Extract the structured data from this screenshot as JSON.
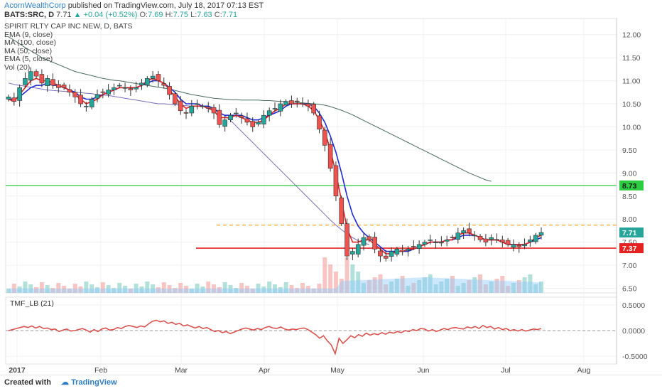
{
  "header": {
    "publisher": "AcornWealthCorp",
    "published_text": "published on TradingView.com, July 18, 2017 07:13 EST",
    "symbol_line": "BATS:SRC, D",
    "last": "7.71",
    "change": "+0.04 (+0.52%)",
    "open_label": "O:",
    "open": "7.69",
    "high_label": "H:",
    "high": "7.75",
    "low_label": "L:",
    "low": "7.63",
    "close_label": "C:",
    "close": "7.71"
  },
  "legend": [
    "SPIRIT RLTY CAP INC NEW, D, BATS",
    "EMA (9, close)",
    "MA (100, close)",
    "MA (50, close)",
    "EMA (5, close)",
    "Vol (20)"
  ],
  "footer": {
    "created_with": "Created with",
    "brand": "TradingView"
  },
  "colors": {
    "up": "#26a69a",
    "down": "#ef5350",
    "ema9": "#1f2bd6",
    "ema5": "#e02020",
    "ma100": "#4a6b5c",
    "ma50": "#7a6fb8",
    "support": "#e52222",
    "resistance_green": "#2ecc40",
    "dashed_orange": "#ffa726",
    "tmf": "#d9534f",
    "volume": "#90caf9"
  },
  "chart_data": [
    {
      "type": "candlestick",
      "title": "SPIRIT RLTY CAP INC NEW, D, BATS",
      "x_ticks": [
        "2017",
        "Feb",
        "Mar",
        "Apr",
        "May",
        "Jun",
        "Jul",
        "Aug"
      ],
      "y_ticks": [
        "12.00",
        "11.50",
        "11.00",
        "10.50",
        "10.00",
        "9.50",
        "9.00",
        "8.50",
        "8.00",
        "7.50",
        "7.00",
        "6.50"
      ],
      "ylim": [
        6.4,
        12.35
      ],
      "close_series": [
        10.65,
        10.55,
        10.85,
        11.05,
        11.2,
        11.1,
        10.95,
        11.05,
        10.9,
        10.85,
        10.85,
        10.75,
        10.65,
        10.5,
        10.45,
        10.6,
        10.7,
        10.75,
        10.8,
        10.85,
        10.9,
        10.85,
        10.8,
        10.85,
        10.95,
        11.05,
        11.1,
        11.0,
        10.9,
        10.7,
        10.5,
        10.35,
        10.3,
        10.45,
        10.5,
        10.45,
        10.4,
        10.3,
        10.05,
        10.15,
        10.25,
        10.3,
        10.2,
        10.1,
        10.0,
        10.1,
        10.25,
        10.35,
        10.4,
        10.5,
        10.55,
        10.5,
        10.55,
        10.5,
        10.45,
        10.3,
        9.95,
        9.6,
        9.1,
        8.5,
        7.9,
        7.2,
        7.3,
        7.45,
        7.6,
        7.55,
        7.35,
        7.2,
        7.15,
        7.3,
        7.35,
        7.3,
        7.35,
        7.4,
        7.45,
        7.5,
        7.55,
        7.5,
        7.5,
        7.55,
        7.6,
        7.7,
        7.75,
        7.7,
        7.65,
        7.55,
        7.5,
        7.6,
        7.55,
        7.5,
        7.45,
        7.45,
        7.4,
        7.45,
        7.55,
        7.65,
        7.71
      ],
      "ema9_series": [
        10.6,
        10.6,
        10.65,
        10.75,
        10.85,
        10.9,
        10.9,
        10.95,
        10.9,
        10.9,
        10.85,
        10.8,
        10.75,
        10.65,
        10.6,
        10.6,
        10.65,
        10.7,
        10.75,
        10.8,
        10.85,
        10.85,
        10.85,
        10.85,
        10.9,
        10.95,
        11.0,
        11.0,
        10.95,
        10.85,
        10.75,
        10.6,
        10.5,
        10.5,
        10.5,
        10.45,
        10.45,
        10.4,
        10.3,
        10.25,
        10.25,
        10.25,
        10.25,
        10.2,
        10.15,
        10.15,
        10.2,
        10.25,
        10.3,
        10.35,
        10.45,
        10.5,
        10.5,
        10.5,
        10.5,
        10.45,
        10.3,
        10.1,
        9.8,
        9.45,
        9.0,
        8.5,
        8.1,
        7.85,
        7.7,
        7.6,
        7.5,
        7.4,
        7.3,
        7.3,
        7.3,
        7.3,
        7.3,
        7.35,
        7.4,
        7.45,
        7.5,
        7.5,
        7.5,
        7.55,
        7.55,
        7.6,
        7.65,
        7.65,
        7.65,
        7.6,
        7.55,
        7.55,
        7.55,
        7.5,
        7.45,
        7.45,
        7.45,
        7.45,
        7.5,
        7.55,
        7.6
      ],
      "ema5_series": [
        10.6,
        10.55,
        10.7,
        10.85,
        11.0,
        11.05,
        11.0,
        11.0,
        10.95,
        10.9,
        10.85,
        10.8,
        10.7,
        10.6,
        10.5,
        10.55,
        10.6,
        10.7,
        10.75,
        10.8,
        10.85,
        10.85,
        10.85,
        10.85,
        10.9,
        11.0,
        11.05,
        11.0,
        10.95,
        10.8,
        10.65,
        10.5,
        10.4,
        10.45,
        10.45,
        10.45,
        10.4,
        10.35,
        10.2,
        10.2,
        10.2,
        10.25,
        10.2,
        10.15,
        10.1,
        10.1,
        10.15,
        10.25,
        10.35,
        10.4,
        10.5,
        10.5,
        10.5,
        10.5,
        10.45,
        10.35,
        10.15,
        9.9,
        9.5,
        9.0,
        8.4,
        7.8,
        7.5,
        7.5,
        7.55,
        7.55,
        7.45,
        7.35,
        7.25,
        7.25,
        7.3,
        7.3,
        7.35,
        7.35,
        7.4,
        7.45,
        7.5,
        7.5,
        7.5,
        7.55,
        7.55,
        7.65,
        7.7,
        7.7,
        7.65,
        7.6,
        7.55,
        7.55,
        7.55,
        7.5,
        7.45,
        7.45,
        7.45,
        7.45,
        7.5,
        7.6,
        7.65
      ],
      "ma100_series": [
        11.95,
        11.88,
        11.8,
        11.72,
        11.65,
        11.58,
        11.5,
        11.45,
        11.4,
        11.35,
        11.3,
        11.25,
        11.2,
        11.17,
        11.14,
        11.11,
        11.08,
        11.05,
        11.03,
        11.01,
        11.0,
        10.98,
        10.96,
        10.94,
        10.92,
        10.9,
        10.88,
        10.86,
        10.84,
        10.82,
        10.79,
        10.76,
        10.73,
        10.7,
        10.68,
        10.66,
        10.64,
        10.62,
        10.61,
        10.6,
        10.59,
        10.59,
        10.58,
        10.58,
        10.58,
        10.58,
        10.57,
        10.57,
        10.56,
        10.55,
        10.55,
        10.54,
        10.53,
        10.52,
        10.51,
        10.5,
        10.49,
        10.47,
        10.44,
        10.4,
        10.36,
        10.31,
        10.26,
        10.2,
        10.14,
        10.08,
        10.02,
        9.96,
        9.9,
        9.84,
        9.78,
        9.72,
        9.66,
        9.6,
        9.54,
        9.48,
        9.42,
        9.36,
        9.3,
        9.24,
        9.18,
        9.12,
        9.06,
        9.0,
        8.95,
        8.9,
        8.85,
        8.82
      ],
      "ma50_series": [
        10.95,
        10.92,
        10.9,
        10.88,
        10.86,
        10.84,
        10.82,
        10.8,
        10.79,
        10.78,
        10.77,
        10.76,
        10.75,
        10.74,
        10.73,
        10.72,
        10.7,
        10.69,
        10.68,
        10.66,
        10.64,
        10.62,
        10.6,
        10.58,
        10.56,
        10.54,
        10.52,
        10.5,
        10.5,
        10.49,
        10.48,
        10.47,
        10.46,
        10.45,
        10.45,
        10.44,
        10.42,
        10.38,
        10.32,
        10.24,
        10.14,
        10.02,
        9.9,
        9.78,
        9.66,
        9.54,
        9.42,
        9.3,
        9.18,
        9.06,
        8.94,
        8.82,
        8.7,
        8.58,
        8.46,
        8.34,
        8.22,
        8.1,
        7.98,
        7.87,
        7.77,
        7.68,
        7.6,
        7.53,
        7.48,
        7.45
      ],
      "support_line": 7.37,
      "green_line": 8.73,
      "orange_dashed": 7.87,
      "price_labels": [
        "8.73",
        "7.71",
        "7.37"
      ]
    },
    {
      "type": "line",
      "title": "TMF_LB (21)",
      "y_ticks": [
        "0.5000",
        "0.0000",
        "-0.5000"
      ],
      "ylim": [
        -0.65,
        0.65
      ],
      "series": [
        {
          "values": [
            0.0,
            0.02,
            0.04,
            0.06,
            0.08,
            0.06,
            0.09,
            0.05,
            0.08,
            0.04,
            0.05,
            0.02,
            0.03,
            -0.02,
            0.01,
            0.03,
            -0.01,
            0.0,
            0.02,
            0.04,
            0.01,
            -0.03,
            0.02,
            -0.02,
            0.03,
            0.05,
            0.01,
            0.02,
            0.06,
            0.04,
            0.08,
            0.1,
            0.08,
            0.06,
            0.09,
            0.07,
            0.13,
            0.18,
            0.2,
            0.17,
            0.19,
            0.14,
            0.16,
            0.12,
            0.14,
            0.09,
            0.11,
            0.08,
            0.05,
            0.08,
            0.04,
            0.06,
            0.02,
            -0.02,
            0.0,
            -0.04,
            -0.02,
            -0.06,
            -0.03,
            0.0,
            0.03,
            0.05,
            0.03,
            0.01,
            0.04,
            0.02,
            0.06,
            0.08,
            0.05,
            0.04,
            0.07,
            0.03,
            0.01,
            0.03,
            0.02,
            0.04,
            0.05,
            0.02,
            -0.03,
            -0.08,
            -0.15,
            -0.1,
            -0.2,
            -0.28,
            -0.45,
            -0.15,
            -0.25,
            -0.18,
            -0.1,
            -0.14,
            -0.08,
            -0.11,
            -0.05,
            -0.09,
            -0.06,
            -0.08,
            -0.04,
            -0.07,
            -0.03,
            -0.05,
            -0.02,
            -0.04,
            0.0,
            -0.02,
            0.02,
            0.0,
            0.04,
            0.03,
            -0.01,
            0.02,
            -0.02,
            0.01,
            0.04,
            0.02,
            0.05,
            0.06,
            0.04,
            0.03,
            0.07,
            0.05,
            0.08,
            0.04,
            0.1,
            0.06,
            0.08,
            0.03,
            0.06,
            0.02,
            0.04,
            0.0,
            0.02,
            -0.01,
            0.02,
            -0.01,
            0.01,
            0.03,
            0.02,
            0.04
          ]
        }
      ]
    }
  ]
}
